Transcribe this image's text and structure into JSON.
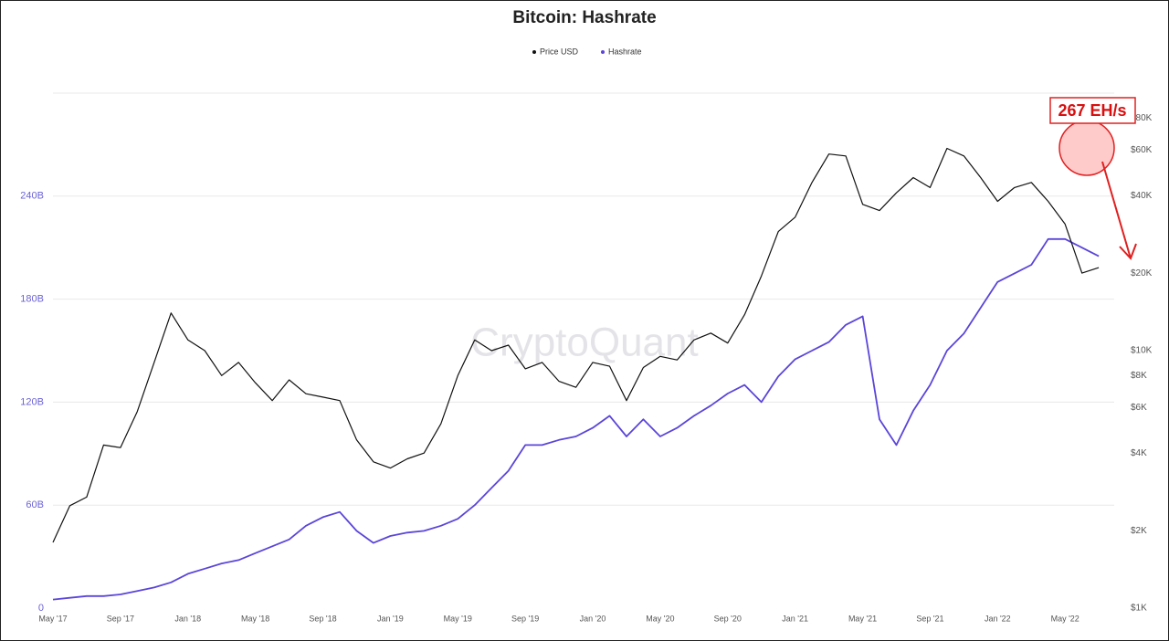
{
  "chart_data": {
    "type": "line",
    "title": "Bitcoin: Hashrate",
    "watermark": "CryptoQuant",
    "annotation": "267 EH/s",
    "categories": [
      "May '17",
      null,
      null,
      null,
      "Sep '17",
      null,
      null,
      null,
      "Jan '18",
      null,
      null,
      null,
      "May '18",
      null,
      null,
      null,
      "Sep '18",
      null,
      null,
      null,
      "Jan '19",
      null,
      null,
      null,
      "May '19",
      null,
      null,
      null,
      "Sep '19",
      null,
      null,
      null,
      "Jan '20",
      null,
      null,
      null,
      "May '20",
      null,
      null,
      null,
      "Sep '20",
      null,
      null,
      null,
      "Jan '21",
      null,
      null,
      null,
      "May '21",
      null,
      null,
      null,
      "Sep '21",
      null,
      null,
      null,
      "Jan '22",
      null,
      null,
      null,
      "May '22",
      null,
      null
    ],
    "series": [
      {
        "name": "Price USD",
        "color": "#111111",
        "axis": "y2",
        "values": [
          1800,
          2500,
          2700,
          4300,
          4200,
          5800,
          9000,
          14000,
          11000,
          10000,
          8000,
          9000,
          7500,
          6400,
          7700,
          6800,
          6600,
          6400,
          4500,
          3700,
          3500,
          3800,
          4000,
          5200,
          8000,
          11000,
          10000,
          10500,
          8500,
          9000,
          7600,
          7200,
          9000,
          8700,
          6400,
          8600,
          9500,
          9200,
          11000,
          11700,
          10700,
          13800,
          19500,
          29000,
          33000,
          45000,
          58000,
          57000,
          37000,
          35000,
          41000,
          47000,
          43000,
          61000,
          57000,
          47000,
          38000,
          43000,
          45000,
          38000,
          31000,
          20000,
          21000
        ]
      },
      {
        "name": "Hashrate",
        "color": "#5b45d9",
        "values": [
          5,
          6,
          7,
          7,
          8,
          10,
          12,
          15,
          20,
          23,
          26,
          28,
          32,
          36,
          40,
          48,
          53,
          56,
          45,
          38,
          42,
          44,
          45,
          48,
          52,
          60,
          70,
          80,
          95,
          95,
          98,
          100,
          105,
          112,
          100,
          110,
          100,
          105,
          112,
          118,
          125,
          130,
          120,
          135,
          145,
          150,
          155,
          165,
          170,
          110,
          95,
          115,
          130,
          150,
          160,
          175,
          190,
          195,
          200,
          215,
          215,
          210,
          205
        ]
      }
    ],
    "ylim": [
      0,
      300
    ],
    "yticks": [
      0,
      {
        "value": 60,
        "label": "60B"
      },
      {
        "value": 120,
        "label": "120B"
      },
      {
        "value": 180,
        "label": "180B"
      },
      {
        "value": 240,
        "label": "240B"
      }
    ],
    "y2lim": [
      1000,
      100000
    ],
    "y2scale": "log",
    "y2ticks": [
      {
        "value": 1000,
        "label": "$1K"
      },
      {
        "value": 2000,
        "label": "$2K"
      },
      {
        "value": 4000,
        "label": "$4K"
      },
      {
        "value": 6000,
        "label": "$6K"
      },
      {
        "value": 8000,
        "label": "$8K"
      },
      {
        "value": 10000,
        "label": "$10K"
      },
      {
        "value": 20000,
        "label": "$20K"
      },
      {
        "value": 40000,
        "label": "$40K"
      },
      {
        "value": 60000,
        "label": "$60K"
      },
      {
        "value": 80000,
        "label": "$80K"
      }
    ],
    "grid": true
  }
}
